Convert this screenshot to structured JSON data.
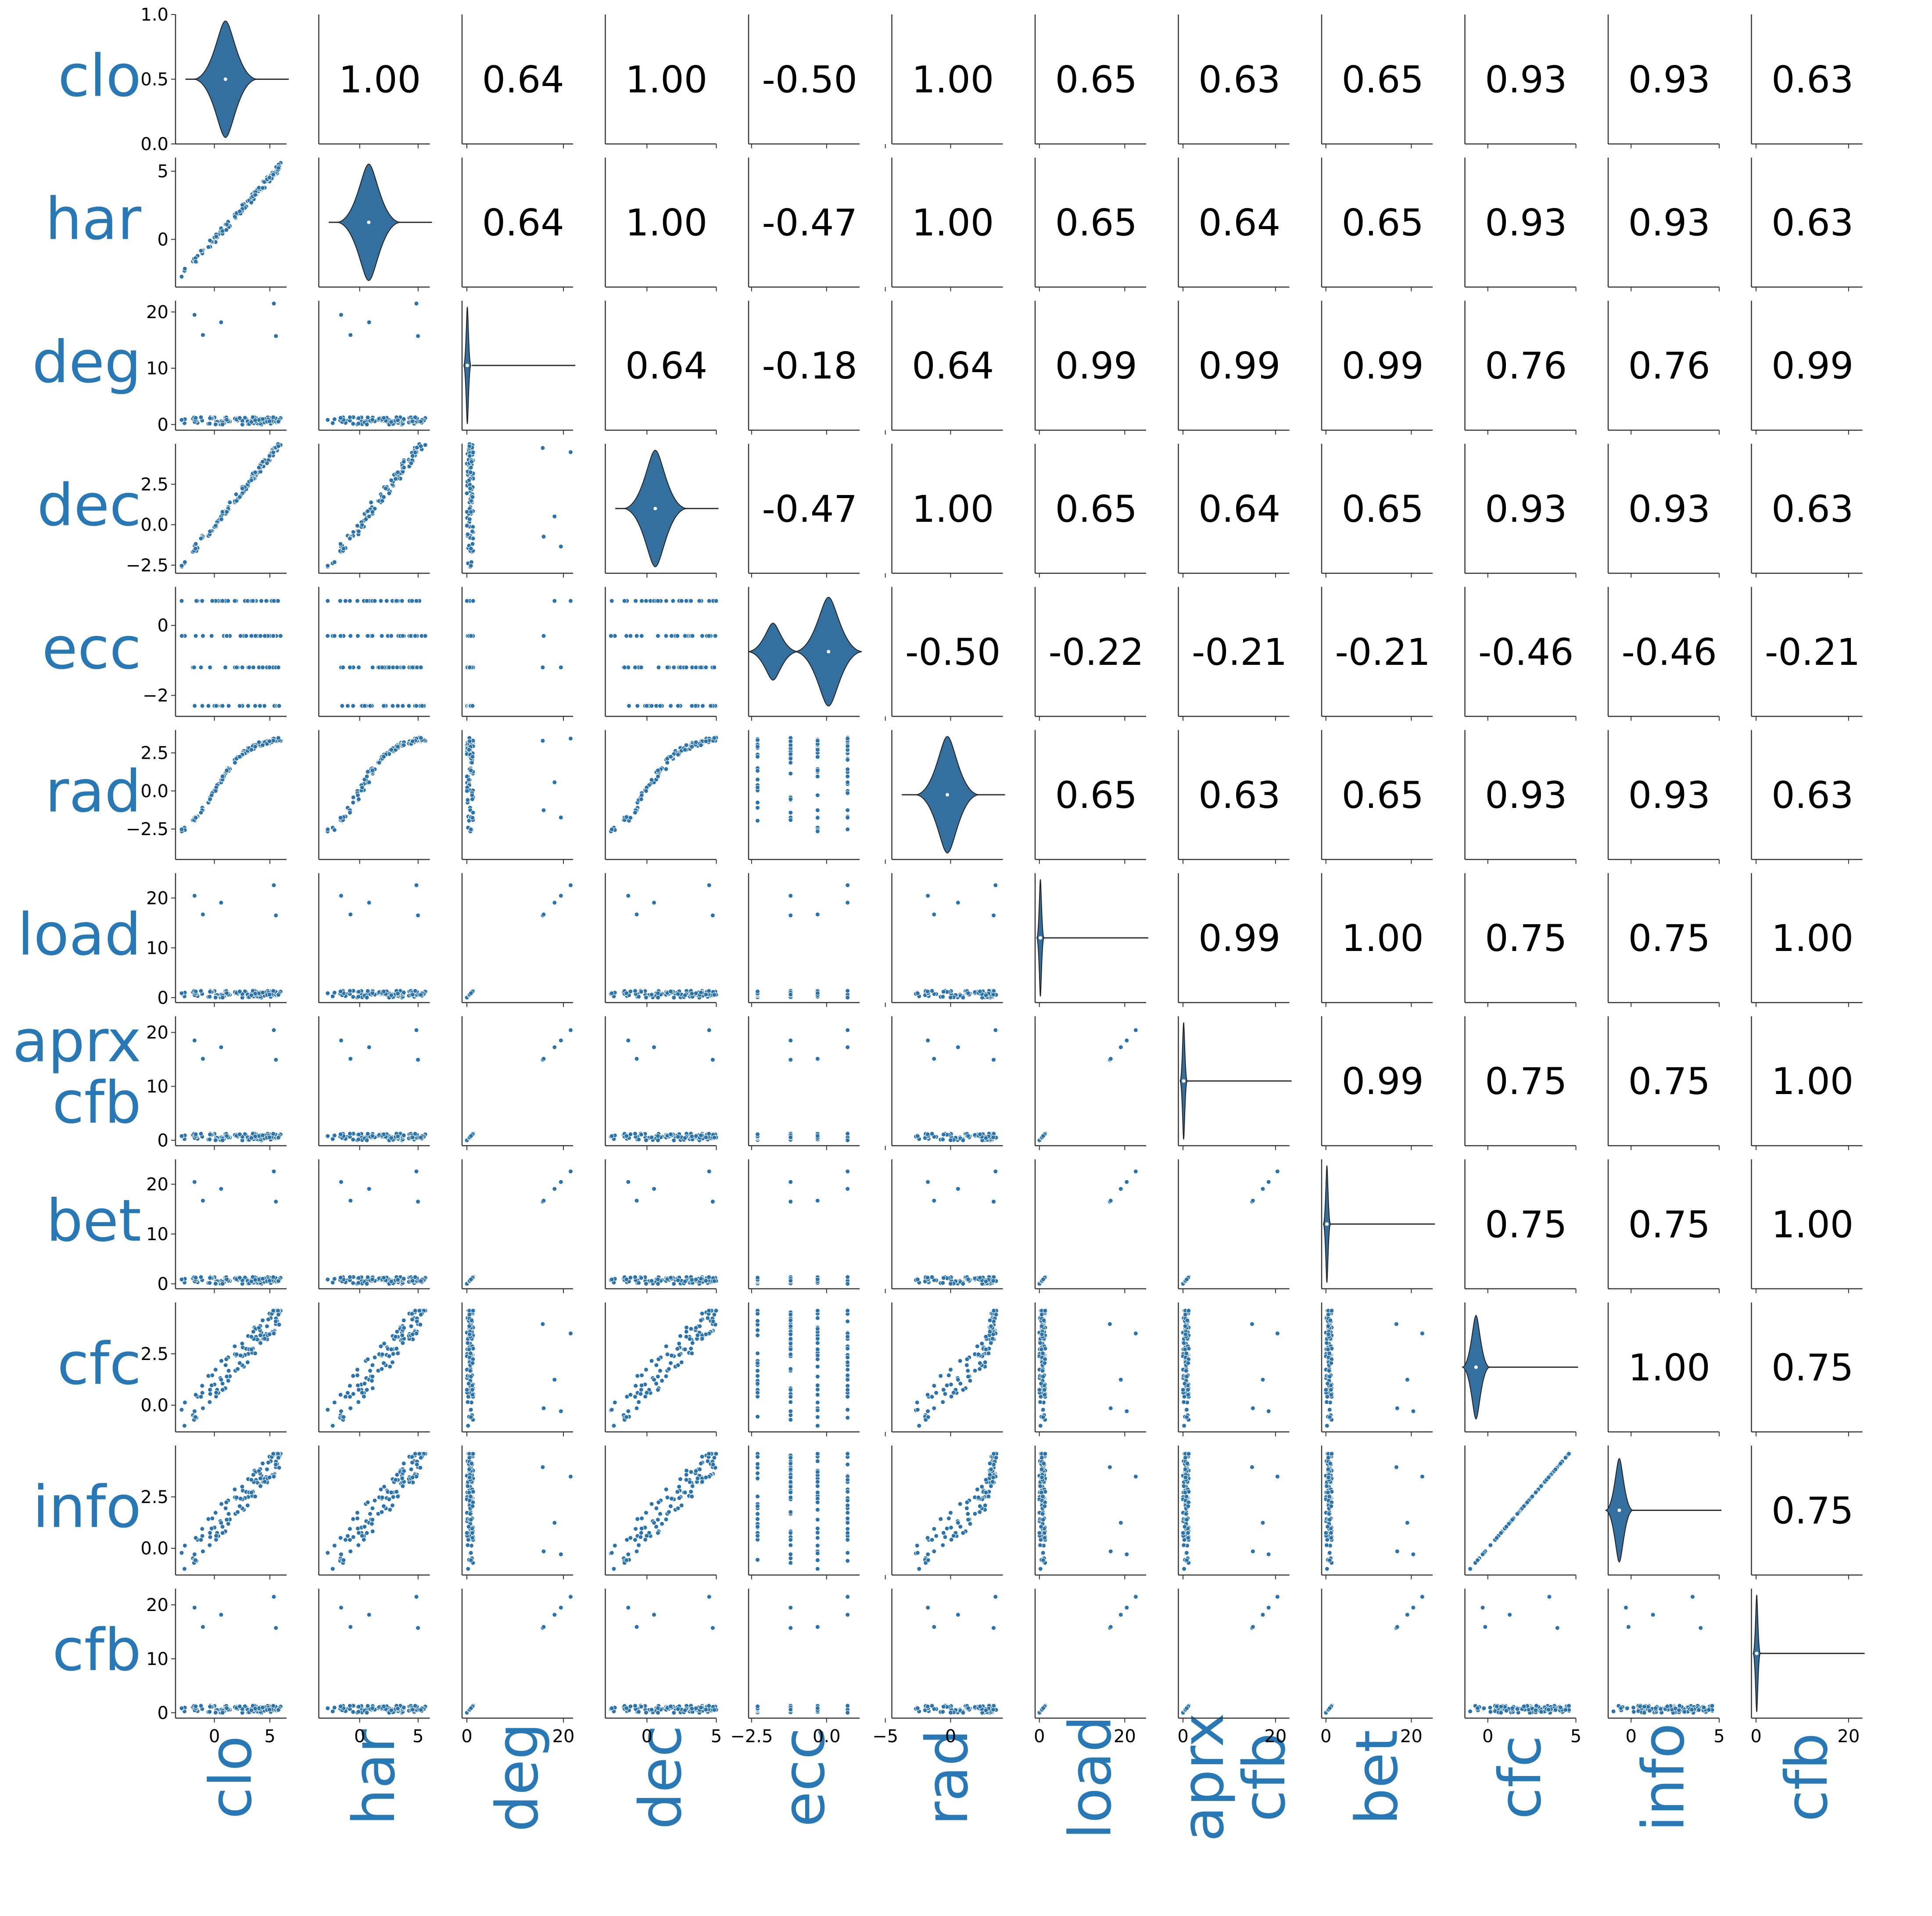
{
  "chart_data": {
    "type": "pairplot",
    "variables": [
      "clo",
      "har",
      "deg",
      "dec",
      "ecc",
      "rad",
      "load",
      "aprx cfb",
      "bet",
      "cfc",
      "info",
      "cfb"
    ],
    "label_color": "#2878b5",
    "point_color": "#2b73ad",
    "violin_color": "#33709f",
    "correlations": [
      [
        null,
        1.0,
        0.64,
        1.0,
        -0.5,
        1.0,
        0.65,
        0.63,
        0.65,
        0.93,
        0.93,
        0.63
      ],
      [
        null,
        null,
        0.64,
        1.0,
        -0.47,
        1.0,
        0.65,
        0.64,
        0.65,
        0.93,
        0.93,
        0.63
      ],
      [
        null,
        null,
        null,
        0.64,
        -0.18,
        0.64,
        0.99,
        0.99,
        0.99,
        0.76,
        0.76,
        0.99
      ],
      [
        null,
        null,
        null,
        null,
        -0.47,
        1.0,
        0.65,
        0.64,
        0.65,
        0.93,
        0.93,
        0.63
      ],
      [
        null,
        null,
        null,
        null,
        null,
        -0.5,
        -0.22,
        -0.21,
        -0.21,
        -0.46,
        -0.46,
        -0.21
      ],
      [
        null,
        null,
        null,
        null,
        null,
        null,
        0.65,
        0.63,
        0.65,
        0.93,
        0.93,
        0.63
      ],
      [
        null,
        null,
        null,
        null,
        null,
        null,
        null,
        0.99,
        1.0,
        0.75,
        0.75,
        1.0
      ],
      [
        null,
        null,
        null,
        null,
        null,
        null,
        null,
        null,
        0.99,
        0.75,
        0.75,
        1.0
      ],
      [
        null,
        null,
        null,
        null,
        null,
        null,
        null,
        null,
        null,
        0.75,
        0.75,
        1.0
      ],
      [
        null,
        null,
        null,
        null,
        null,
        null,
        null,
        null,
        null,
        null,
        1.0,
        0.75
      ],
      [
        null,
        null,
        null,
        null,
        null,
        null,
        null,
        null,
        null,
        null,
        null,
        0.75
      ],
      [
        null,
        null,
        null,
        null,
        null,
        null,
        null,
        null,
        null,
        null,
        null,
        null
      ]
    ],
    "y_ticks": [
      [
        "1.0",
        "0.5",
        "0.0"
      ],
      [
        "5",
        "0"
      ],
      [
        "20",
        "10",
        "0"
      ],
      [
        "2.5",
        "0.0",
        "−2.5"
      ],
      [
        "0",
        "−2"
      ],
      [
        "2.5",
        "0.0",
        "−2.5"
      ],
      [
        "20",
        "10",
        "0"
      ],
      [
        "20",
        "10",
        "0"
      ],
      [
        "20",
        "10",
        "0"
      ],
      [
        "2.5",
        "0.0"
      ],
      [
        "2.5",
        "0.0"
      ],
      [
        "20",
        "10",
        "0"
      ]
    ],
    "y_tick_values": [
      [
        1.0,
        0.5,
        0.0
      ],
      [
        5,
        0
      ],
      [
        20,
        10,
        0
      ],
      [
        2.5,
        0.0,
        -2.5
      ],
      [
        0,
        -2
      ],
      [
        2.5,
        0.0,
        -2.5
      ],
      [
        20,
        10,
        0
      ],
      [
        20,
        10,
        0
      ],
      [
        20,
        10,
        0
      ],
      [
        2.5,
        0.0
      ],
      [
        2.5,
        0.0
      ],
      [
        20,
        10,
        0
      ]
    ],
    "x_ticks": [
      [
        "0",
        "5"
      ],
      [
        "0",
        "5"
      ],
      [
        "0",
        "20"
      ],
      [
        "0",
        "5"
      ],
      [
        "−2.5",
        "0.0"
      ],
      [
        "−5",
        "0"
      ],
      [
        "0",
        "20"
      ],
      [
        "0",
        "20"
      ],
      [
        "0",
        "20"
      ],
      [
        "0",
        "5"
      ],
      [
        "0",
        "5"
      ],
      [
        "0",
        "20"
      ]
    ],
    "x_tick_values": [
      [
        0,
        5
      ],
      [
        0,
        5
      ],
      [
        0,
        20
      ],
      [
        0,
        5
      ],
      [
        -2.5,
        0.0
      ],
      [
        -5,
        0
      ],
      [
        0,
        20
      ],
      [
        0,
        20
      ],
      [
        0,
        20
      ],
      [
        0,
        5
      ],
      [
        0,
        5
      ],
      [
        0,
        20
      ]
    ],
    "ranges": [
      [
        -3.5,
        6.5
      ],
      [
        -3.5,
        6.0
      ],
      [
        -1,
        22
      ],
      [
        -3,
        5
      ],
      [
        -2.6,
        1.1
      ],
      [
        -4.5,
        4.0
      ],
      [
        -1,
        25
      ],
      [
        -1,
        23
      ],
      [
        -1,
        25
      ],
      [
        -1.3,
        5.0
      ],
      [
        -1.3,
        5.0
      ],
      [
        -1,
        23
      ]
    ],
    "diag_range": [
      0,
      1
    ]
  }
}
